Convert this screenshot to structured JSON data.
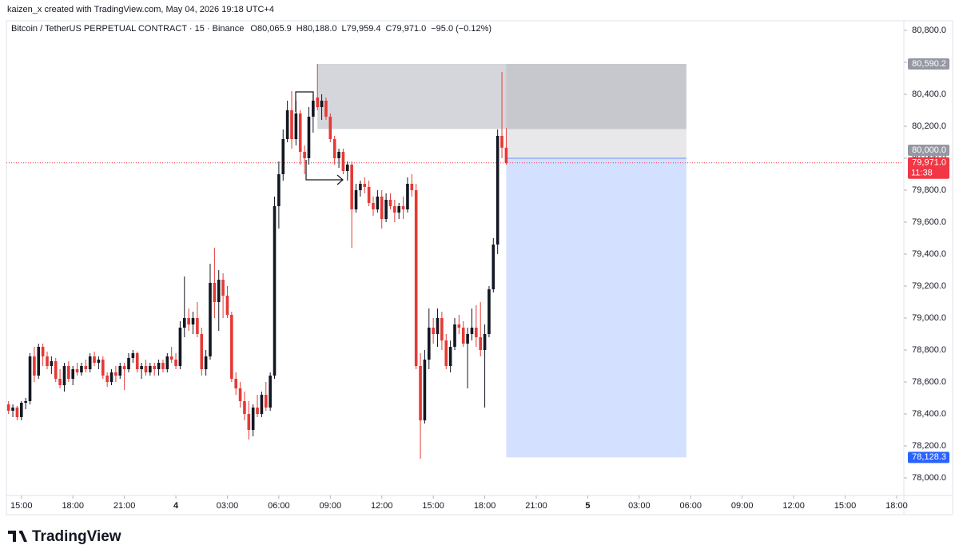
{
  "header": {
    "caption": "kaizen_x created with TradingView.com, May 04, 2026 19:18 UTC+4"
  },
  "footer": {
    "brand": "TradingView"
  },
  "chart_data": {
    "type": "candlestick",
    "title": "Bitcoin / TetherUS PERPETUAL CONTRACT · 15 · Binance",
    "legend_texts": [
      "O80,065.9",
      "H80,188.0",
      "L79,959.4",
      "C79,971.0",
      "−95.0 (−0.12%)"
    ],
    "up_color": "#131722",
    "down_color": "#e53935",
    "ohlc": [
      [
        78460,
        78480,
        78400,
        78420
      ],
      [
        78420,
        78460,
        78380,
        78440
      ],
      [
        78440,
        78450,
        78360,
        78380
      ],
      [
        78380,
        78480,
        78360,
        78470
      ],
      [
        78470,
        78500,
        78430,
        78480
      ],
      [
        78480,
        78780,
        78460,
        78760
      ],
      [
        78760,
        78820,
        78600,
        78640
      ],
      [
        78640,
        78840,
        78620,
        78820
      ],
      [
        78820,
        78840,
        78700,
        78760
      ],
      [
        78760,
        78790,
        78680,
        78700
      ],
      [
        78700,
        78760,
        78650,
        78730
      ],
      [
        78730,
        78750,
        78600,
        78620
      ],
      [
        78620,
        78680,
        78560,
        78580
      ],
      [
        78580,
        78720,
        78540,
        78700
      ],
      [
        78700,
        78730,
        78600,
        78620
      ],
      [
        78620,
        78700,
        78580,
        78680
      ],
      [
        78680,
        78720,
        78640,
        78660
      ],
      [
        78660,
        78720,
        78640,
        78700
      ],
      [
        78700,
        78740,
        78660,
        78680
      ],
      [
        78680,
        78780,
        78660,
        78760
      ],
      [
        78760,
        78790,
        78700,
        78720
      ],
      [
        78720,
        78760,
        78680,
        78740
      ],
      [
        78740,
        78760,
        78620,
        78640
      ],
      [
        78640,
        78660,
        78570,
        78600
      ],
      [
        78600,
        78680,
        78580,
        78660
      ],
      [
        78660,
        78700,
        78600,
        78640
      ],
      [
        78640,
        78720,
        78620,
        78700
      ],
      [
        78700,
        78720,
        78550,
        78680
      ],
      [
        78680,
        78780,
        78660,
        78750
      ],
      [
        78750,
        78800,
        78720,
        78780
      ],
      [
        78780,
        78790,
        78660,
        78680
      ],
      [
        78680,
        78720,
        78620,
        78700
      ],
      [
        78700,
        78740,
        78640,
        78660
      ],
      [
        78660,
        78720,
        78640,
        78700
      ],
      [
        78700,
        78720,
        78640,
        78680
      ],
      [
        78680,
        78740,
        78640,
        78720
      ],
      [
        78720,
        78740,
        78660,
        78680
      ],
      [
        78680,
        78780,
        78660,
        78760
      ],
      [
        78760,
        78820,
        78720,
        78740
      ],
      [
        78740,
        78780,
        78680,
        78700
      ],
      [
        78700,
        78980,
        78680,
        78940
      ],
      [
        78940,
        79260,
        78880,
        79000
      ],
      [
        79000,
        79060,
        78920,
        78960
      ],
      [
        78960,
        79040,
        78900,
        79000
      ],
      [
        79000,
        79100,
        78880,
        78900
      ],
      [
        78900,
        78940,
        78640,
        78680
      ],
      [
        78680,
        78800,
        78640,
        78760
      ],
      [
        78760,
        79340,
        78740,
        79220
      ],
      [
        79220,
        79440,
        79000,
        79100
      ],
      [
        79100,
        79300,
        78920,
        79240
      ],
      [
        79240,
        79280,
        79000,
        79140
      ],
      [
        79140,
        79200,
        79000,
        79020
      ],
      [
        79020,
        79040,
        78600,
        78620
      ],
      [
        78620,
        78660,
        78520,
        78560
      ],
      [
        78560,
        78600,
        78440,
        78480
      ],
      [
        78480,
        78540,
        78360,
        78400
      ],
      [
        78400,
        78480,
        78240,
        78300
      ],
      [
        78300,
        78460,
        78260,
        78440
      ],
      [
        78440,
        78520,
        78380,
        78400
      ],
      [
        78400,
        78540,
        78380,
        78520
      ],
      [
        78520,
        78600,
        78420,
        78440
      ],
      [
        78440,
        78660,
        78420,
        78640
      ],
      [
        78640,
        79760,
        78620,
        79700
      ],
      [
        79700,
        79980,
        79560,
        79900
      ],
      [
        79900,
        80180,
        79860,
        80120
      ],
      [
        80120,
        80360,
        80100,
        80300
      ],
      [
        80300,
        80420,
        80060,
        80120
      ],
      [
        80120,
        80360,
        80080,
        80280
      ],
      [
        80280,
        80300,
        79960,
        80040
      ],
      [
        80040,
        80080,
        79900,
        80000
      ],
      [
        80000,
        80320,
        79960,
        80260
      ],
      [
        80260,
        80400,
        80160,
        80360
      ],
      [
        80380,
        80590.2,
        80300,
        80320
      ],
      [
        80320,
        80400,
        80240,
        80360
      ],
      [
        80360,
        80380,
        80240,
        80260
      ],
      [
        80260,
        80280,
        80100,
        80120
      ],
      [
        80120,
        80140,
        79960,
        80000
      ],
      [
        80000,
        80060,
        79940,
        80040
      ],
      [
        80040,
        80060,
        79900,
        79920
      ],
      [
        79920,
        79980,
        79860,
        79960
      ],
      [
        79960,
        79980,
        79440,
        79680
      ],
      [
        79680,
        79840,
        79660,
        79800
      ],
      [
        79800,
        79860,
        79760,
        79840
      ],
      [
        79840,
        79880,
        79780,
        79820
      ],
      [
        79820,
        79860,
        79700,
        79720
      ],
      [
        79720,
        79760,
        79640,
        79680
      ],
      [
        79680,
        79800,
        79660,
        79760
      ],
      [
        79760,
        79800,
        79560,
        79620
      ],
      [
        79620,
        79780,
        79600,
        79740
      ],
      [
        79740,
        79780,
        79680,
        79700
      ],
      [
        79700,
        79740,
        79600,
        79660
      ],
      [
        79660,
        79720,
        79620,
        79700
      ],
      [
        79700,
        79760,
        79620,
        79680
      ],
      [
        79680,
        79880,
        79660,
        79840
      ],
      [
        79840,
        79900,
        79760,
        79800
      ],
      [
        79800,
        79840,
        78680,
        78700
      ],
      [
        78700,
        78780,
        78120,
        78360
      ],
      [
        78360,
        78800,
        78340,
        78740
      ],
      [
        78740,
        79060,
        78680,
        78940
      ],
      [
        78940,
        79000,
        78840,
        78900
      ],
      [
        78900,
        79060,
        78820,
        79000
      ],
      [
        79000,
        79040,
        78800,
        78860
      ],
      [
        78860,
        78900,
        78680,
        78700
      ],
      [
        78700,
        78860,
        78660,
        78820
      ],
      [
        78820,
        79000,
        78800,
        78960
      ],
      [
        78960,
        79020,
        78900,
        78940
      ],
      [
        78940,
        78980,
        78820,
        78840
      ],
      [
        78840,
        78940,
        78560,
        78900
      ],
      [
        78900,
        79060,
        78860,
        78940
      ],
      [
        78940,
        79080,
        78820,
        78880
      ],
      [
        78880,
        79100,
        78760,
        78800
      ],
      [
        78800,
        78960,
        78440,
        78900
      ],
      [
        78900,
        79200,
        78880,
        79180
      ],
      [
        79180,
        79500,
        79160,
        79460
      ],
      [
        79460,
        80180,
        79400,
        80140
      ],
      [
        80140,
        80540,
        80000,
        80065.9
      ],
      [
        80065.9,
        80188,
        79959.4,
        79971
      ]
    ],
    "xlim": [
      -0.5,
      208.5
    ],
    "xticks": [
      {
        "value": 3,
        "label": "15:00"
      },
      {
        "value": 15,
        "label": "18:00"
      },
      {
        "value": 27,
        "label": "21:00"
      },
      {
        "value": 39,
        "label": "4"
      },
      {
        "value": 51,
        "label": "03:00"
      },
      {
        "value": 63,
        "label": "06:00"
      },
      {
        "value": 75,
        "label": "09:00"
      },
      {
        "value": 87,
        "label": "12:00"
      },
      {
        "value": 99,
        "label": "15:00"
      },
      {
        "value": 111,
        "label": "18:00"
      },
      {
        "value": 123,
        "label": "21:00"
      },
      {
        "value": 135,
        "label": "5"
      },
      {
        "value": 147,
        "label": "03:00"
      },
      {
        "value": 159,
        "label": "06:00"
      },
      {
        "value": 171,
        "label": "09:00"
      },
      {
        "value": 183,
        "label": "12:00"
      },
      {
        "value": 195,
        "label": "15:00"
      },
      {
        "value": 207,
        "label": "18:00"
      }
    ],
    "ylim": [
      77890,
      80860
    ],
    "yticks": [
      {
        "value": 78000,
        "label": "78,000.0"
      },
      {
        "value": 78200,
        "label": "78,200.0"
      },
      {
        "value": 78400,
        "label": "78,400.0"
      },
      {
        "value": 78600,
        "label": "78,600.0"
      },
      {
        "value": 78800,
        "label": "78,800.0"
      },
      {
        "value": 79000,
        "label": "79,000.0"
      },
      {
        "value": 79200,
        "label": "79,200.0"
      },
      {
        "value": 79400,
        "label": "79,400.0"
      },
      {
        "value": 79600,
        "label": "79,600.0"
      },
      {
        "value": 79800,
        "label": "79,800.0"
      },
      {
        "value": 80000,
        "label": "80,000.0"
      },
      {
        "value": 80200,
        "label": "80,200.0"
      },
      {
        "value": 80400,
        "label": "80,400.0"
      },
      {
        "value": 80600,
        "label": "80,600.0"
      },
      {
        "value": 80800,
        "label": "80,800.0"
      }
    ],
    "last_price": {
      "value": 79971,
      "label": "79,971.0",
      "color": "#f23645"
    },
    "countdown": "11:38",
    "rectangle": {
      "x": [
        72,
        158
      ],
      "y": [
        80183,
        80590.2
      ],
      "color": "#b2b5be"
    },
    "position": {
      "x": [
        116,
        158
      ],
      "stop": {
        "value": 80590.2,
        "label": "80,590.2",
        "color": "#9598a1"
      },
      "entry": {
        "value": 80000,
        "label": "80,000.0",
        "color": "#9598a1"
      },
      "target": {
        "value": 78128.3,
        "label": "78,128.3",
        "color": "#2962ff"
      }
    }
  }
}
